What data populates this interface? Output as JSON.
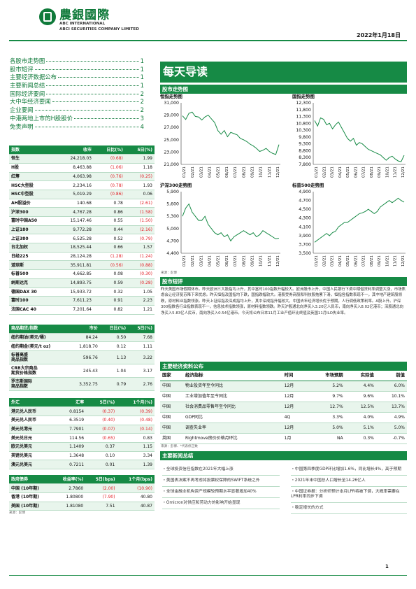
{
  "header": {
    "company_cn": "農銀國際",
    "company_en1": "ABC INTERNATIONAL",
    "company_en2": "ABCI SECURITIES COMPANY LIMITED",
    "date": "2022年1月18日"
  },
  "toc": [
    {
      "label": "各股市走势图",
      "page": "1"
    },
    {
      "label": "股市短评",
      "page": "1"
    },
    {
      "label": "主要经济数据公布",
      "page": "1"
    },
    {
      "label": "主要新闻总结",
      "page": "1"
    },
    {
      "label": "国际经济要闻",
      "page": "2"
    },
    {
      "label": "大中华经济要闻",
      "page": "2"
    },
    {
      "label": "企业要闻",
      "page": "2"
    },
    {
      "label": "中港两地上市的H股股价",
      "page": "3"
    },
    {
      "label": "免责声明",
      "page": "4"
    }
  ],
  "main_title": "每天导读",
  "market_section_title": "股市走势图",
  "index_table": {
    "headers": [
      "指数",
      "收市",
      "日比(%)",
      "5日(%)"
    ],
    "rows": [
      [
        "恒生",
        "24,218.03",
        "(0.68)",
        "1.99"
      ],
      [
        "H股",
        "8,463.88",
        "(1.06)",
        "1.18"
      ],
      [
        "红筹",
        "4,063.98",
        "(0.76)",
        "(0.25)"
      ],
      [
        "HSC大型股",
        "2,234.16",
        "(0.78)",
        "1.93"
      ],
      [
        "HSC中型股",
        "5,019.29",
        "(0.86)",
        "0.06"
      ],
      [
        "AH股溢价",
        "140.68",
        "0.78",
        "(2.61)"
      ],
      [
        "沪深300",
        "4,767.28",
        "0.86",
        "(1.58)"
      ],
      [
        "富时中国A50",
        "15,147.46",
        "0.55",
        "(1.50)"
      ],
      [
        "上证180",
        "9,772.28",
        "0.44",
        "(2.16)"
      ],
      [
        "上证380",
        "6,525.28",
        "0.52",
        "(0.79)"
      ],
      [
        "台北加权",
        "18,525.44",
        "0.66",
        "1.57"
      ],
      [
        "日经225",
        "28,124.28",
        "(1.28)",
        "(1.24)"
      ],
      [
        "道琼斯",
        "35,911.81",
        "(0.56)",
        "(0.88)"
      ],
      [
        "标普500",
        "4,662.85",
        "0.08",
        "(0.30)"
      ],
      [
        "纳斯达克",
        "14,893.75",
        "0.59",
        "(0.28)"
      ],
      [
        "德国DAX 30",
        "15,933.72",
        "0.32",
        "1.05"
      ],
      [
        "富时100",
        "7,611.23",
        "0.91",
        "2.23"
      ],
      [
        "法国CAC 40",
        "7,201.64",
        "0.82",
        "1.21"
      ]
    ]
  },
  "commodity_table": {
    "headers": [
      "商品期货/指数",
      "市价",
      "日比(%)",
      "5日(%)"
    ],
    "rows": [
      [
        "纽约期油(美元/桶)",
        "84.24",
        "0.50",
        "7.68"
      ],
      [
        "纽约期金(美元/t oz)",
        "1,818.70",
        "0.12",
        "1.11"
      ],
      [
        "标普高盛\n商品指数",
        "596.76",
        "1.13",
        "3.22"
      ],
      [
        "CRB大宗商品\n期货价格指数",
        "245.43",
        "1.04",
        "3.17"
      ],
      [
        "罗杰斯国际\n商品指数",
        "3,352.75",
        "0.79",
        "2.76"
      ]
    ]
  },
  "fx_table": {
    "headers": [
      "外汇",
      "汇率",
      "5日(%)",
      "1个月(%)"
    ],
    "rows": [
      [
        "港元兑人民币",
        "0.8154",
        "(0.37)",
        "(0.39)"
      ],
      [
        "美元兑人民币",
        "6.3519",
        "(0.40)",
        "(0.48)"
      ],
      [
        "美元兑港元",
        "7.7901",
        "(0.07)",
        "(0.14)"
      ],
      [
        "美元兑日元",
        "114.56",
        "(0.65)",
        "0.83"
      ],
      [
        "欧元兑美元",
        "1.1409",
        "0.37",
        "1.15"
      ],
      [
        "英镑兑美元",
        "1.3648",
        "0.10",
        "3.34"
      ],
      [
        "澳元兑美元",
        "0.7211",
        "0.01",
        "1.39"
      ]
    ]
  },
  "bond_table": {
    "headers": [
      "政府债券",
      "收益率(%)",
      "5日(bps)",
      "1个月(bps)"
    ],
    "rows": [
      [
        "中国 (10年期)",
        "2.7860",
        "(2.00)",
        "(10.90)"
      ],
      [
        "香港 (10年期)",
        "1.80800",
        "(7.90)",
        "40.80"
      ],
      [
        "美国 (10年期)",
        "1.81080",
        "7.51",
        "40.87"
      ]
    ]
  },
  "source_label": "来源：彭博",
  "charts": [
    {
      "title": "恒指走势图",
      "ylim": [
        21000,
        31000
      ],
      "yticks": [
        "31,000",
        "29,000",
        "27,000",
        "25,000",
        "23,000",
        "21,000"
      ],
      "values": [
        28900,
        28300,
        29300,
        29500,
        28800,
        28700,
        28200,
        28700,
        29000,
        28400,
        27800,
        26500,
        25900,
        26500,
        25500,
        26200,
        26000,
        25800,
        25200,
        25000,
        24700,
        24300,
        24000,
        23600,
        23100,
        23300,
        23600,
        23100,
        22800,
        22600,
        24218
      ]
    },
    {
      "title": "国指走势图",
      "ylim": [
        7800,
        12300
      ],
      "yticks": [
        "12,300",
        "11,800",
        "11,300",
        "10,800",
        "10,300",
        "9,800",
        "9,300",
        "8,800",
        "8,300",
        "7,800"
      ],
      "values": [
        11000,
        10600,
        11200,
        11100,
        10700,
        10800,
        10400,
        10700,
        10900,
        10500,
        10100,
        9700,
        9500,
        9700,
        9200,
        9400,
        9300,
        9100,
        8900,
        8800,
        8700,
        8600,
        8500,
        8300,
        8100,
        8300,
        8400,
        8200,
        8050,
        8000,
        8464
      ]
    },
    {
      "title": "沪深300走势图",
      "ylim": [
        4400,
        5900
      ],
      "yticks": [
        "5,900",
        "5,600",
        "5,300",
        "5,000",
        "4,700",
        "4,400"
      ],
      "values": [
        5300,
        5500,
        5600,
        5400,
        5300,
        5200,
        5200,
        5300,
        5100,
        5000,
        4900,
        4850,
        4900,
        4800,
        4850,
        4700,
        4800,
        4850,
        4900,
        4950,
        4900,
        4850,
        4900,
        4800,
        4850,
        4950,
        4900,
        4850,
        4800,
        4750,
        4767
      ]
    },
    {
      "title": "标普500走势图",
      "ylim": [
        3500,
        4900
      ],
      "yticks": [
        "4,900",
        "4,700",
        "4,500",
        "4,300",
        "4,100",
        "3,900",
        "3,700",
        "3,500"
      ],
      "values": [
        3750,
        3800,
        3850,
        3900,
        3950,
        3900,
        3970,
        4000,
        4100,
        4150,
        4200,
        4200,
        4250,
        4300,
        4350,
        4400,
        4420,
        4450,
        4500,
        4450,
        4400,
        4450,
        4550,
        4600,
        4650,
        4700,
        4650,
        4700,
        4750,
        4700,
        4663
      ]
    }
  ],
  "chart_xlabels": [
    "01/21",
    "02/21",
    "03/21",
    "04/21",
    "05/21",
    "06/21",
    "07/21",
    "08/21",
    "09/21",
    "10/21",
    "11/21",
    "12/21"
  ],
  "commentary": {
    "title": "股市短评",
    "text": "昨天美国市场假期休市。昨天欧洲三大股指均上升，其中富时100指数升幅较大。欧洲股市上升，中国人民银行下调中期借贷利率调整大涨，市场焦虑会让经济复苏降下来忧虑。昨天恒指及国指均下跌，国指跌幅较大。港股受券商股和科技股拖累下滑，恒指各指数表现不一，其中地产建筑股领跌，原材料业指数领涨。昨天上证综指及深成指均上升，其中深成指升幅较大，中国去年经济增长优于预期，人行调低政策利率。A股上升。沪深300指数各行业指数表现不一，信息技术指数领涨，原材料指数领跌。昨天沪股通北向净买入3.20亿人民币，南向净买入8.02亿港币；深股通北向净买入5.83亿人民币，南向净买入0.54亿港币。今天将公布日本11月工业产值环比终值及英国11月ILO失业率。"
  },
  "econ": {
    "title": "主要经济资料公布",
    "headers": [
      "国家",
      "经济指标",
      "时间",
      "市场预期",
      "实际值",
      "前值"
    ],
    "rows": [
      [
        "中国",
        "物业投资年至今同比",
        "12月",
        "5.2%",
        "4.4%",
        "6.0%"
      ],
      [
        "中国",
        "工业增加值年至今同比",
        "12月",
        "9.7%",
        "9.6%",
        "10.1%"
      ],
      [
        "中国",
        "社会消费品零售年至今同比",
        "12月",
        "12.7%",
        "12.5%",
        "13.7%"
      ],
      [
        "中国",
        "GDP同比",
        "4Q",
        "3.3%",
        "4.0%",
        "4.9%"
      ],
      [
        "中国",
        "调查失业率",
        "12月",
        "5.0%",
        "5.1%",
        "5.0%"
      ],
      [
        "英国",
        "Rightmove房价价格月环比",
        "1月",
        "NA",
        "0.3%",
        "-0.7%"
      ]
    ],
    "source": "来源：彭博、*代表修正数"
  },
  "news": {
    "title": "主要新闻总结",
    "left": [
      "・全球投资信任指数在2021年大幅上涨",
      "・美国表决案不再考虑将投票权保障的SWIFT系统之外",
      "・全球金融业机构资产规模较预期水平显著增加40%",
      "・Omicron对供应和劳动力的影响开始显现"
    ],
    "right": [
      "・中国第四季度GDP环比增加1.6%，同比增长4%，高于预期",
      "・2021年末中国总人口增长至14.26亿人",
      "・中国证券报：分析师预计本月LPR将被下调，大概率需要在LPR利率同步下调",
      "・稳定增长的方式"
    ]
  },
  "page_number": "1"
}
